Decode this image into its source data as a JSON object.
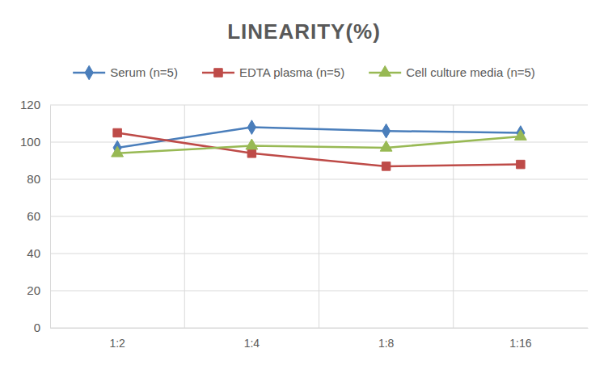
{
  "chart_data": {
    "type": "line",
    "title": "LINEARITY(%)",
    "categories": [
      "1:2",
      "1:4",
      "1:8",
      "1:16"
    ],
    "series": [
      {
        "name": "Serum (n=5)",
        "color": "#4a7ebb",
        "marker": "diamond",
        "values": [
          97,
          108,
          106,
          105
        ]
      },
      {
        "name": "EDTA plasma (n=5)",
        "color": "#be4b48",
        "marker": "square",
        "values": [
          105,
          94,
          87,
          88
        ]
      },
      {
        "name": "Cell culture media (n=5)",
        "color": "#98b954",
        "marker": "triangle",
        "values": [
          94,
          98,
          97,
          103
        ]
      }
    ],
    "ylim": [
      0,
      120
    ],
    "yticks": [
      0,
      20,
      40,
      60,
      80,
      100,
      120
    ],
    "grid": true,
    "legend": "top"
  }
}
